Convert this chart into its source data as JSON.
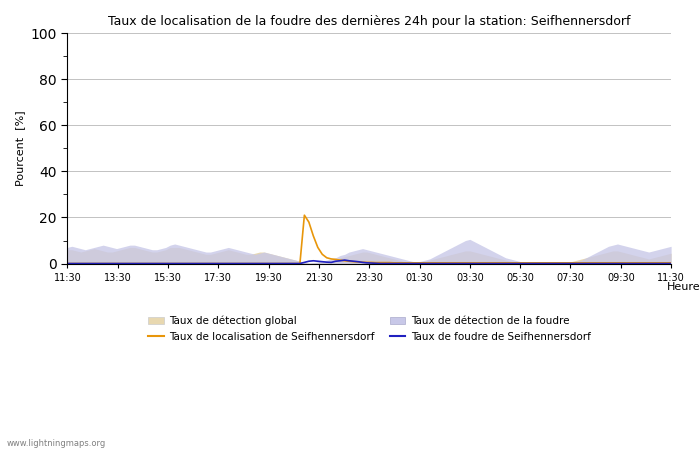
{
  "title": "Taux de localisation de la foudre des dernières 24h pour la station: Seifhennersdorf",
  "ylabel": "Pourcent  [%]",
  "xlabel": "Heure",
  "watermark": "www.lightningmaps.org",
  "ylim": [
    0,
    100
  ],
  "yticks": [
    0,
    20,
    40,
    60,
    80,
    100
  ],
  "x_labels": [
    "11:30",
    "13:30",
    "15:30",
    "17:30",
    "19:30",
    "21:30",
    "23:30",
    "01:30",
    "03:30",
    "05:30",
    "07:30",
    "09:30",
    "11:30"
  ],
  "legend": [
    {
      "label": "Taux de détection global",
      "color": "#e8d8b0",
      "type": "fill"
    },
    {
      "label": "Taux de localisation de Seifhennersdorf",
      "color": "#e8960a",
      "type": "line"
    },
    {
      "label": "Taux de détection de la foudre",
      "color": "#c8c8e8",
      "type": "fill"
    },
    {
      "label": "Taux de foudre de Seifhennersdorf",
      "color": "#2020c0",
      "type": "line"
    }
  ],
  "global_detection": [
    6,
    6,
    5.5,
    5,
    5.5,
    6,
    6.5,
    6,
    5.5,
    5,
    5,
    5.5,
    6,
    6.5,
    7,
    7,
    6.5,
    6,
    5.5,
    5,
    5,
    5.5,
    6,
    7,
    7,
    7,
    6.5,
    6,
    5.5,
    5,
    4.5,
    4,
    4,
    4.5,
    5,
    5.5,
    6,
    5.5,
    5,
    4.5,
    4,
    4,
    4.5,
    5,
    5,
    4.5,
    4,
    3.5,
    3,
    2.5,
    2,
    1.5,
    1,
    0.5,
    0.2,
    0.3,
    0.5,
    0.8,
    1,
    1.5,
    2,
    2.5,
    3,
    3.5,
    4,
    4.5,
    5,
    5,
    4.5,
    4,
    3.5,
    3,
    2.5,
    2,
    1.5,
    1,
    0.5,
    0.3,
    0.3,
    0.5,
    1,
    1.5,
    2,
    2.5,
    3,
    3.5,
    4,
    4.5,
    5,
    5.5,
    5.5,
    5,
    4.5,
    4,
    3.5,
    3,
    2.5,
    2,
    1.5,
    1,
    0.5,
    0.3,
    0.3,
    0.3,
    0.3,
    0.3,
    0.3,
    0.3,
    0.3,
    0.3,
    0.3,
    0.3,
    0.5,
    1,
    1.5,
    2,
    2.5,
    3,
    3.5,
    4,
    4.5,
    5,
    5.5,
    5.5,
    5,
    4.5,
    4,
    3.5,
    3,
    2.5,
    2,
    2.5,
    3,
    3.5,
    4,
    4.5,
    5,
    5.5,
    6,
    6.5,
    7,
    7
  ],
  "lightning_detection": [
    7,
    7.5,
    7,
    6.5,
    6,
    6.5,
    7,
    7.5,
    8,
    7.5,
    7,
    6.5,
    7,
    7.5,
    8,
    8,
    7.5,
    7,
    6.5,
    6,
    6,
    6.5,
    7,
    8,
    8.5,
    8,
    7.5,
    7,
    6.5,
    6,
    5.5,
    5,
    5,
    5.5,
    6,
    6.5,
    7,
    6.5,
    6,
    5.5,
    5,
    4.5,
    4,
    4.5,
    5,
    4.5,
    4,
    3.5,
    3,
    2.5,
    2,
    1.5,
    1,
    0.5,
    0.2,
    0.4,
    0.7,
    1,
    1.5,
    2,
    2.5,
    3.5,
    4,
    5,
    5.5,
    6,
    6.5,
    6,
    5.5,
    5,
    4.5,
    4,
    3.5,
    3,
    2.5,
    2,
    1.5,
    1,
    0.5,
    1,
    1.5,
    2,
    3,
    4,
    5,
    6,
    7,
    8,
    9,
    10,
    10.5,
    9.5,
    8.5,
    7.5,
    6.5,
    5.5,
    4.5,
    3.5,
    2.5,
    2,
    1.5,
    1,
    0.5,
    0.3,
    0.3,
    0.3,
    0.3,
    0.3,
    0.3,
    0.3,
    0.3,
    0.3,
    0.3,
    0.5,
    1,
    1.5,
    2.5,
    3.5,
    4.5,
    5.5,
    6.5,
    7.5,
    8,
    8.5,
    8,
    7.5,
    7,
    6.5,
    6,
    5.5,
    5,
    5.5,
    6,
    6.5,
    7,
    7.5,
    8,
    8.5,
    8.5,
    9,
    8,
    7.5,
    8.5,
    9
  ],
  "localisation_seif": [
    0,
    0,
    0,
    0,
    0,
    0,
    0,
    0,
    0,
    0,
    0,
    0,
    0,
    0,
    0,
    0,
    0,
    0,
    0,
    0,
    0,
    0,
    0,
    0,
    0,
    0,
    0,
    0,
    0,
    0,
    0,
    0,
    0,
    0,
    0,
    0,
    0,
    0,
    0,
    0,
    0,
    0,
    0,
    0,
    0,
    0,
    0,
    0,
    0,
    0,
    0,
    0,
    0,
    21,
    18,
    12,
    7,
    4,
    2.5,
    2,
    1.8,
    1.5,
    1.2,
    1,
    0.8,
    0.7,
    0.6,
    0.5,
    0.5,
    0.4,
    0.4,
    0.4,
    0.4,
    0.3,
    0.3,
    0.3,
    0.3,
    0.3,
    0.3,
    0.3,
    0.3,
    0.3,
    0.3,
    0.3,
    0.3,
    0.3,
    0.3,
    0.3,
    0.3,
    0.3,
    0.3,
    0.3,
    0.3,
    0.3,
    0.3,
    0.3,
    0.3,
    0.3,
    0.3,
    0.3,
    0.3,
    0.3,
    0.3,
    0.3,
    0.3,
    0.3,
    0.3,
    0.3,
    0.3,
    0.3,
    0.3,
    0.3,
    0.3,
    0.3,
    0.3,
    0.3,
    0.3,
    0.3,
    0.3,
    0.3,
    0.3,
    0.3,
    0.3,
    0.3,
    0.3,
    0.3,
    0.3,
    0.3,
    0.3,
    0.3,
    0.3,
    0.3,
    0.3,
    0.3,
    0.3,
    0.3,
    0.3,
    0.3,
    0.3,
    0.3
  ],
  "foudre_seif": [
    0,
    0,
    0,
    0,
    0,
    0,
    0,
    0,
    0,
    0,
    0,
    0,
    0,
    0,
    0,
    0,
    0,
    0,
    0,
    0,
    0,
    0,
    0,
    0,
    0,
    0,
    0,
    0,
    0,
    0,
    0,
    0,
    0,
    0,
    0,
    0,
    0,
    0,
    0,
    0,
    0,
    0,
    0,
    0,
    0,
    0,
    0,
    0,
    0,
    0,
    0,
    0,
    0,
    0.5,
    1,
    1.2,
    1,
    0.8,
    0.6,
    0.5,
    1,
    1.2,
    1.5,
    1.2,
    1,
    0.8,
    0.5,
    0.3,
    0.2,
    0.1,
    0,
    0,
    0,
    0,
    0,
    0,
    0,
    0,
    0,
    0,
    0,
    0,
    0,
    0,
    0,
    0,
    0,
    0,
    0,
    0,
    0,
    0,
    0,
    0,
    0,
    0,
    0,
    0,
    0,
    0,
    0,
    0,
    0,
    0,
    0,
    0,
    0,
    0,
    0,
    0,
    0,
    0,
    0,
    0,
    0,
    0,
    0,
    0,
    0,
    0,
    0,
    0,
    0,
    0,
    0,
    0,
    0,
    0,
    0,
    0,
    0,
    0,
    0,
    0,
    0,
    0
  ]
}
